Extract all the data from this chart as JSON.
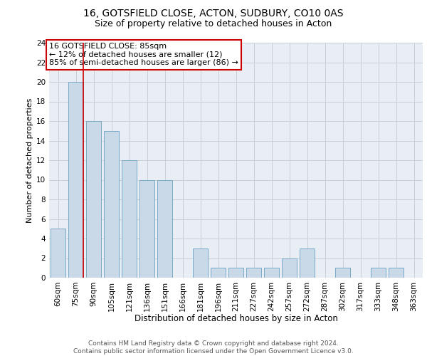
{
  "title1": "16, GOTSFIELD CLOSE, ACTON, SUDBURY, CO10 0AS",
  "title2": "Size of property relative to detached houses in Acton",
  "xlabel": "Distribution of detached houses by size in Acton",
  "ylabel": "Number of detached properties",
  "categories": [
    "60sqm",
    "75sqm",
    "90sqm",
    "105sqm",
    "121sqm",
    "136sqm",
    "151sqm",
    "166sqm",
    "181sqm",
    "196sqm",
    "211sqm",
    "227sqm",
    "242sqm",
    "257sqm",
    "272sqm",
    "287sqm",
    "302sqm",
    "317sqm",
    "333sqm",
    "348sqm",
    "363sqm"
  ],
  "values": [
    5,
    20,
    16,
    15,
    12,
    10,
    10,
    0,
    3,
    1,
    1,
    1,
    1,
    2,
    3,
    0,
    1,
    0,
    1,
    1,
    0
  ],
  "bar_color": "#c9d9e8",
  "bar_edgecolor": "#7aaac8",
  "vline_color": "#cc0000",
  "vline_x_index": 1.425,
  "annotation_text": "16 GOTSFIELD CLOSE: 85sqm\n← 12% of detached houses are smaller (12)\n85% of semi-detached houses are larger (86) →",
  "annotation_box_color": "white",
  "annotation_box_edgecolor": "#cc0000",
  "ylim": [
    0,
    24
  ],
  "yticks": [
    0,
    2,
    4,
    6,
    8,
    10,
    12,
    14,
    16,
    18,
    20,
    22,
    24
  ],
  "grid_color": "#c8d0d8",
  "background_color": "#e8eef4",
  "footnote": "Contains HM Land Registry data © Crown copyright and database right 2024.\nContains public sector information licensed under the Open Government Licence v3.0.",
  "title1_fontsize": 10,
  "title2_fontsize": 9,
  "xlabel_fontsize": 8.5,
  "ylabel_fontsize": 8,
  "tick_fontsize": 7.5,
  "annotation_fontsize": 8,
  "footnote_fontsize": 6.5
}
